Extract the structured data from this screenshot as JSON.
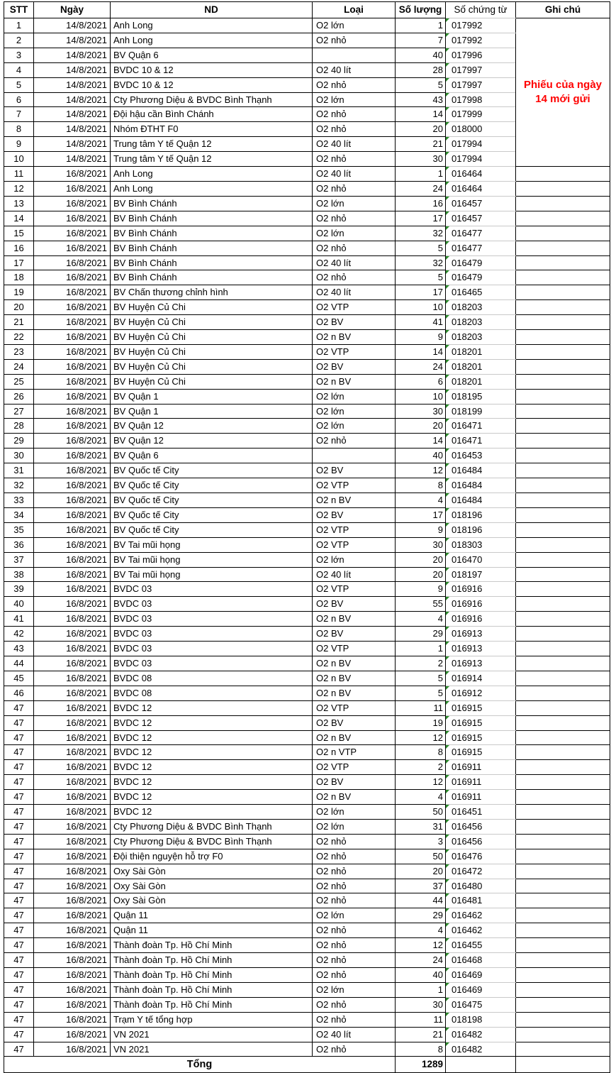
{
  "colors": {
    "border": "#000000",
    "gridline": "#c9c9c9",
    "note_text": "#ff0000",
    "stored_as_text_flag": "#2a8a2a",
    "background": "#ffffff"
  },
  "table": {
    "headers": {
      "stt": "STT",
      "ngay": "Ngày",
      "nd": "ND",
      "loai": "Loại",
      "so_luong": "Số lượng",
      "so_chung_tu": "Số chứng từ",
      "ghi_chu": "Ghi chú"
    },
    "note": {
      "line1": "Phiếu của ngày",
      "line2": "14 mới gửi",
      "rows_spanned": 10
    },
    "rows": [
      {
        "stt": "1",
        "ngay": "14/8/2021",
        "nd": "Anh Long",
        "loai": "O2 lớn",
        "so_luong": "1",
        "so_chung_tu": "017992"
      },
      {
        "stt": "2",
        "ngay": "14/8/2021",
        "nd": "Anh Long",
        "loai": "O2 nhỏ",
        "so_luong": "7",
        "so_chung_tu": "017992"
      },
      {
        "stt": "3",
        "ngay": "14/8/2021",
        "nd": "BV Quận 6",
        "loai": "",
        "so_luong": "40",
        "so_chung_tu": "017996"
      },
      {
        "stt": "4",
        "ngay": "14/8/2021",
        "nd": "BVDC 10 & 12",
        "loai": "O2 40 lít",
        "so_luong": "28",
        "so_chung_tu": "017997"
      },
      {
        "stt": "5",
        "ngay": "14/8/2021",
        "nd": "BVDC 10 & 12",
        "loai": "O2 nhỏ",
        "so_luong": "5",
        "so_chung_tu": "017997"
      },
      {
        "stt": "6",
        "ngay": "14/8/2021",
        "nd": "Cty Phương Diệu & BVDC Bình Thạnh",
        "loai": "O2 lớn",
        "so_luong": "43",
        "so_chung_tu": "017998"
      },
      {
        "stt": "7",
        "ngay": "14/8/2021",
        "nd": "Đội hậu cần Bình Chánh",
        "loai": "O2 nhỏ",
        "so_luong": "14",
        "so_chung_tu": "017999"
      },
      {
        "stt": "8",
        "ngay": "14/8/2021",
        "nd": "Nhóm ĐTHT F0",
        "loai": "O2 nhỏ",
        "so_luong": "20",
        "so_chung_tu": "018000"
      },
      {
        "stt": "9",
        "ngay": "14/8/2021",
        "nd": "Trung tâm Y tế Quận 12",
        "loai": "O2 40 lít",
        "so_luong": "21",
        "so_chung_tu": "017994"
      },
      {
        "stt": "10",
        "ngay": "14/8/2021",
        "nd": "Trung tâm Y tế Quận 12",
        "loai": "O2 nhỏ",
        "so_luong": "30",
        "so_chung_tu": "017994"
      },
      {
        "stt": "11",
        "ngay": "16/8/2021",
        "nd": "Anh Long",
        "loai": "O2 40 lít",
        "so_luong": "1",
        "so_chung_tu": "016464"
      },
      {
        "stt": "12",
        "ngay": "16/8/2021",
        "nd": "Anh Long",
        "loai": "O2 nhỏ",
        "so_luong": "24",
        "so_chung_tu": "016464"
      },
      {
        "stt": "13",
        "ngay": "16/8/2021",
        "nd": "BV Bình Chánh",
        "loai": "O2 lớn",
        "so_luong": "16",
        "so_chung_tu": "016457"
      },
      {
        "stt": "14",
        "ngay": "16/8/2021",
        "nd": "BV Bình Chánh",
        "loai": "O2 nhỏ",
        "so_luong": "17",
        "so_chung_tu": "016457"
      },
      {
        "stt": "15",
        "ngay": "16/8/2021",
        "nd": "BV Bình Chánh",
        "loai": "O2 lớn",
        "so_luong": "32",
        "so_chung_tu": "016477"
      },
      {
        "stt": "16",
        "ngay": "16/8/2021",
        "nd": "BV Bình Chánh",
        "loai": "O2 nhỏ",
        "so_luong": "5",
        "so_chung_tu": "016477"
      },
      {
        "stt": "17",
        "ngay": "16/8/2021",
        "nd": "BV Bình Chánh",
        "loai": "O2 40 lít",
        "so_luong": "32",
        "so_chung_tu": "016479"
      },
      {
        "stt": "18",
        "ngay": "16/8/2021",
        "nd": "BV Bình Chánh",
        "loai": "O2 nhỏ",
        "so_luong": "5",
        "so_chung_tu": "016479"
      },
      {
        "stt": "19",
        "ngay": "16/8/2021",
        "nd": "BV Chấn thương chỉnh hình",
        "loai": "O2 40 lít",
        "so_luong": "17",
        "so_chung_tu": "016465"
      },
      {
        "stt": "20",
        "ngay": "16/8/2021",
        "nd": "BV Huyện Củ Chi",
        "loai": "O2 VTP",
        "so_luong": "10",
        "so_chung_tu": "018203"
      },
      {
        "stt": "21",
        "ngay": "16/8/2021",
        "nd": "BV Huyện Củ Chi",
        "loai": "O2 BV",
        "so_luong": "41",
        "so_chung_tu": "018203"
      },
      {
        "stt": "22",
        "ngay": "16/8/2021",
        "nd": "BV Huyện Củ Chi",
        "loai": "O2 n BV",
        "so_luong": "9",
        "so_chung_tu": "018203"
      },
      {
        "stt": "23",
        "ngay": "16/8/2021",
        "nd": "BV Huyện Củ Chi",
        "loai": "O2 VTP",
        "so_luong": "14",
        "so_chung_tu": "018201"
      },
      {
        "stt": "24",
        "ngay": "16/8/2021",
        "nd": "BV Huyện Củ Chi",
        "loai": "O2 BV",
        "so_luong": "24",
        "so_chung_tu": "018201"
      },
      {
        "stt": "25",
        "ngay": "16/8/2021",
        "nd": "BV Huyện Củ Chi",
        "loai": "O2 n BV",
        "so_luong": "6",
        "so_chung_tu": "018201"
      },
      {
        "stt": "26",
        "ngay": "16/8/2021",
        "nd": "BV Quận 1",
        "loai": "O2 lớn",
        "so_luong": "10",
        "so_chung_tu": "018195"
      },
      {
        "stt": "27",
        "ngay": "16/8/2021",
        "nd": "BV Quận 1",
        "loai": "O2 lớn",
        "so_luong": "30",
        "so_chung_tu": "018199"
      },
      {
        "stt": "28",
        "ngay": "16/8/2021",
        "nd": "BV Quận 12",
        "loai": "O2 lớn",
        "so_luong": "20",
        "so_chung_tu": "016471"
      },
      {
        "stt": "29",
        "ngay": "16/8/2021",
        "nd": "BV Quận 12",
        "loai": "O2 nhỏ",
        "so_luong": "14",
        "so_chung_tu": "016471"
      },
      {
        "stt": "30",
        "ngay": "16/8/2021",
        "nd": "BV Quận 6",
        "loai": "",
        "so_luong": "40",
        "so_chung_tu": "016453"
      },
      {
        "stt": "31",
        "ngay": "16/8/2021",
        "nd": "BV Quốc tế City",
        "loai": "O2 BV",
        "so_luong": "12",
        "so_chung_tu": "016484"
      },
      {
        "stt": "32",
        "ngay": "16/8/2021",
        "nd": "BV Quốc tế City",
        "loai": "O2 VTP",
        "so_luong": "8",
        "so_chung_tu": "016484"
      },
      {
        "stt": "33",
        "ngay": "16/8/2021",
        "nd": "BV Quốc tế City",
        "loai": "O2 n BV",
        "so_luong": "4",
        "so_chung_tu": "016484"
      },
      {
        "stt": "34",
        "ngay": "16/8/2021",
        "nd": "BV Quốc tế City",
        "loai": "O2 BV",
        "so_luong": "17",
        "so_chung_tu": "018196"
      },
      {
        "stt": "35",
        "ngay": "16/8/2021",
        "nd": "BV Quốc tế City",
        "loai": "O2 VTP",
        "so_luong": "9",
        "so_chung_tu": "018196"
      },
      {
        "stt": "36",
        "ngay": "16/8/2021",
        "nd": "BV Tai mũi họng",
        "loai": "O2 VTP",
        "so_luong": "30",
        "so_chung_tu": "018303"
      },
      {
        "stt": "37",
        "ngay": "16/8/2021",
        "nd": "BV Tai mũi họng",
        "loai": "O2 lớn",
        "so_luong": "20",
        "so_chung_tu": "016470"
      },
      {
        "stt": "38",
        "ngay": "16/8/2021",
        "nd": "BV Tai mũi họng",
        "loai": "O2 40 lít",
        "so_luong": "20",
        "so_chung_tu": "018197"
      },
      {
        "stt": "39",
        "ngay": "16/8/2021",
        "nd": "BVDC 03",
        "loai": "O2 VTP",
        "so_luong": "9",
        "so_chung_tu": "016916"
      },
      {
        "stt": "40",
        "ngay": "16/8/2021",
        "nd": "BVDC 03",
        "loai": "O2 BV",
        "so_luong": "55",
        "so_chung_tu": "016916"
      },
      {
        "stt": "41",
        "ngay": "16/8/2021",
        "nd": "BVDC 03",
        "loai": "O2 n BV",
        "so_luong": "4",
        "so_chung_tu": "016916"
      },
      {
        "stt": "42",
        "ngay": "16/8/2021",
        "nd": "BVDC 03",
        "loai": "O2 BV",
        "so_luong": "29",
        "so_chung_tu": "016913"
      },
      {
        "stt": "43",
        "ngay": "16/8/2021",
        "nd": "BVDC 03",
        "loai": "O2 VTP",
        "so_luong": "1",
        "so_chung_tu": "016913"
      },
      {
        "stt": "44",
        "ngay": "16/8/2021",
        "nd": "BVDC 03",
        "loai": "O2 n BV",
        "so_luong": "2",
        "so_chung_tu": "016913"
      },
      {
        "stt": "45",
        "ngay": "16/8/2021",
        "nd": "BVDC 08",
        "loai": "O2 n BV",
        "so_luong": "5",
        "so_chung_tu": "016914"
      },
      {
        "stt": "46",
        "ngay": "16/8/2021",
        "nd": "BVDC 08",
        "loai": "O2 n BV",
        "so_luong": "5",
        "so_chung_tu": "016912"
      },
      {
        "stt": "47",
        "ngay": "16/8/2021",
        "nd": "BVDC 12",
        "loai": "O2 VTP",
        "so_luong": "11",
        "so_chung_tu": "016915"
      },
      {
        "stt": "47",
        "ngay": "16/8/2021",
        "nd": "BVDC 12",
        "loai": "O2 BV",
        "so_luong": "19",
        "so_chung_tu": "016915"
      },
      {
        "stt": "47",
        "ngay": "16/8/2021",
        "nd": "BVDC 12",
        "loai": "O2 n BV",
        "so_luong": "12",
        "so_chung_tu": "016915"
      },
      {
        "stt": "47",
        "ngay": "16/8/2021",
        "nd": "BVDC 12",
        "loai": "O2 n VTP",
        "so_luong": "8",
        "so_chung_tu": "016915"
      },
      {
        "stt": "47",
        "ngay": "16/8/2021",
        "nd": "BVDC 12",
        "loai": "O2 VTP",
        "so_luong": "2",
        "so_chung_tu": "016911"
      },
      {
        "stt": "47",
        "ngay": "16/8/2021",
        "nd": "BVDC 12",
        "loai": "O2 BV",
        "so_luong": "12",
        "so_chung_tu": "016911"
      },
      {
        "stt": "47",
        "ngay": "16/8/2021",
        "nd": "BVDC 12",
        "loai": "O2 n BV",
        "so_luong": "4",
        "so_chung_tu": "016911"
      },
      {
        "stt": "47",
        "ngay": "16/8/2021",
        "nd": "BVDC 12",
        "loai": "O2 lớn",
        "so_luong": "50",
        "so_chung_tu": "016451"
      },
      {
        "stt": "47",
        "ngay": "16/8/2021",
        "nd": "Cty Phương Diệu & BVDC Bình Thạnh",
        "loai": "O2 lớn",
        "so_luong": "31",
        "so_chung_tu": "016456"
      },
      {
        "stt": "47",
        "ngay": "16/8/2021",
        "nd": "Cty Phương Diệu & BVDC Bình Thạnh",
        "loai": "O2 nhỏ",
        "so_luong": "3",
        "so_chung_tu": "016456"
      },
      {
        "stt": "47",
        "ngay": "16/8/2021",
        "nd": "Đội thiện nguyện hỗ trợ F0",
        "loai": "O2 nhỏ",
        "so_luong": "50",
        "so_chung_tu": "016476"
      },
      {
        "stt": "47",
        "ngay": "16/8/2021",
        "nd": "Oxy Sài Gòn",
        "loai": "O2 nhỏ",
        "so_luong": "20",
        "so_chung_tu": "016472"
      },
      {
        "stt": "47",
        "ngay": "16/8/2021",
        "nd": "Oxy Sài Gòn",
        "loai": "O2 nhỏ",
        "so_luong": "37",
        "so_chung_tu": "016480"
      },
      {
        "stt": "47",
        "ngay": "16/8/2021",
        "nd": "Oxy Sài Gòn",
        "loai": "O2 nhỏ",
        "so_luong": "44",
        "so_chung_tu": "016481"
      },
      {
        "stt": "47",
        "ngay": "16/8/2021",
        "nd": "Quận 11",
        "loai": "O2 lớn",
        "so_luong": "29",
        "so_chung_tu": "016462"
      },
      {
        "stt": "47",
        "ngay": "16/8/2021",
        "nd": "Quận 11",
        "loai": "O2 nhỏ",
        "so_luong": "4",
        "so_chung_tu": "016462"
      },
      {
        "stt": "47",
        "ngay": "16/8/2021",
        "nd": "Thành đoàn Tp. Hồ Chí Minh",
        "loai": "O2 nhỏ",
        "so_luong": "12",
        "so_chung_tu": "016455"
      },
      {
        "stt": "47",
        "ngay": "16/8/2021",
        "nd": "Thành đoàn Tp. Hồ Chí Minh",
        "loai": "O2 nhỏ",
        "so_luong": "24",
        "so_chung_tu": "016468"
      },
      {
        "stt": "47",
        "ngay": "16/8/2021",
        "nd": "Thành đoàn Tp. Hồ Chí Minh",
        "loai": "O2 nhỏ",
        "so_luong": "40",
        "so_chung_tu": "016469"
      },
      {
        "stt": "47",
        "ngay": "16/8/2021",
        "nd": "Thành đoàn Tp. Hồ Chí Minh",
        "loai": "O2 lớn",
        "so_luong": "1",
        "so_chung_tu": "016469"
      },
      {
        "stt": "47",
        "ngay": "16/8/2021",
        "nd": "Thành đoàn Tp. Hồ Chí Minh",
        "loai": "O2 nhỏ",
        "so_luong": "30",
        "so_chung_tu": "016475"
      },
      {
        "stt": "47",
        "ngay": "16/8/2021",
        "nd": "Trạm Y tế tổng hợp",
        "loai": "O2 nhỏ",
        "so_luong": "11",
        "so_chung_tu": "018198"
      },
      {
        "stt": "47",
        "ngay": "16/8/2021",
        "nd": "VN 2021",
        "loai": "O2 40 lít",
        "so_luong": "21",
        "so_chung_tu": "016482"
      },
      {
        "stt": "47",
        "ngay": "16/8/2021",
        "nd": "VN 2021",
        "loai": "O2 nhỏ",
        "so_luong": "8",
        "so_chung_tu": "016482"
      }
    ],
    "total": {
      "label": "Tổng",
      "value": "1289"
    }
  }
}
